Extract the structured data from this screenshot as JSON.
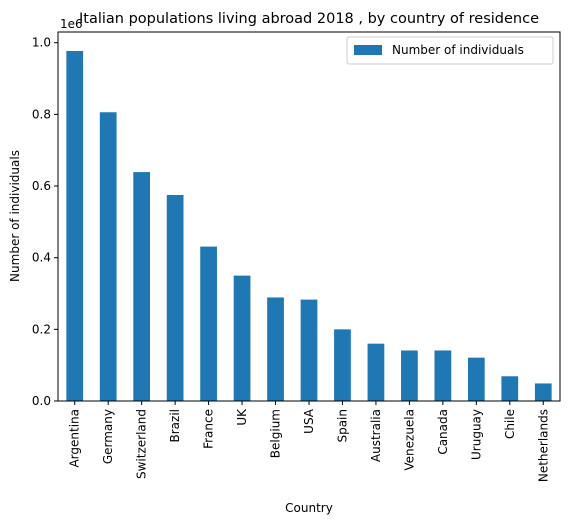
{
  "chart_data": {
    "type": "bar",
    "title": "Italian populations living abroad 2018 , by country of residence",
    "xlabel": "Country",
    "ylabel": "Number of individuals",
    "offset_label": "1e6",
    "ylim": [
      0,
      1.03
    ],
    "yticks": [
      "0.0",
      "0.2",
      "0.4",
      "0.6",
      "0.8",
      "1.0"
    ],
    "grid": false,
    "legend_position": "top-right",
    "bar_color": "#1f77b4",
    "categories": [
      "Argentina",
      "Germany",
      "Switzerland",
      "Brazil",
      "France",
      "UK",
      "Belgium",
      "USA",
      "Spain",
      "Australia",
      "Venezuela",
      "Canada",
      "Uruguay",
      "Chile",
      "Netherlands"
    ],
    "series": [
      {
        "name": "Number of individuals",
        "values": [
          0.977,
          0.806,
          0.639,
          0.575,
          0.431,
          0.35,
          0.289,
          0.283,
          0.2,
          0.16,
          0.141,
          0.141,
          0.121,
          0.069,
          0.049
        ]
      }
    ]
  }
}
